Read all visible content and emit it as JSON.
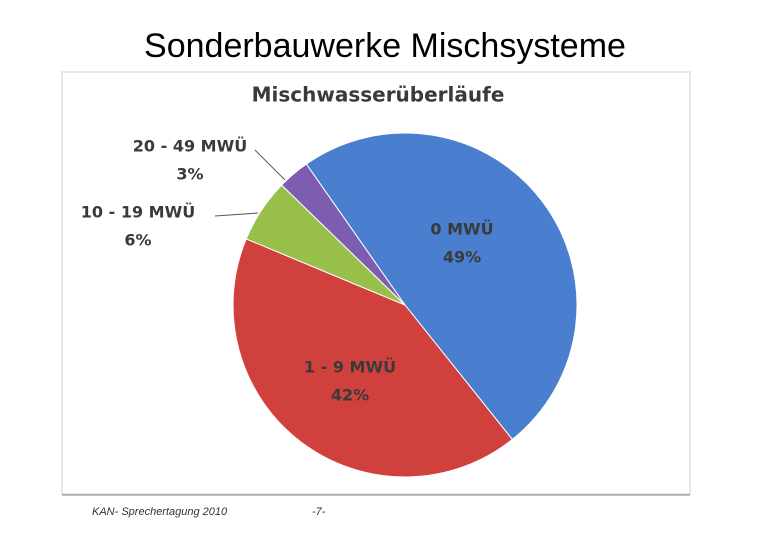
{
  "slide_title": "Sonderbauwerke Mischsysteme",
  "footer": {
    "left": "KAN- Sprechertagung 2010",
    "page": "-7-"
  },
  "chart_data": {
    "type": "pie",
    "title": "Mischwasserüberläufe",
    "categories": [
      "0 MWÜ",
      "1 - 9 MWÜ",
      "10 - 19 MWÜ",
      "20 - 49 MWÜ"
    ],
    "values": [
      49,
      42,
      6,
      3
    ],
    "value_labels": [
      "49%",
      "42%",
      "6%",
      "3%"
    ],
    "colors": [
      "#4a7fd0",
      "#d0413d",
      "#98bf4a",
      "#7d5db0"
    ]
  }
}
